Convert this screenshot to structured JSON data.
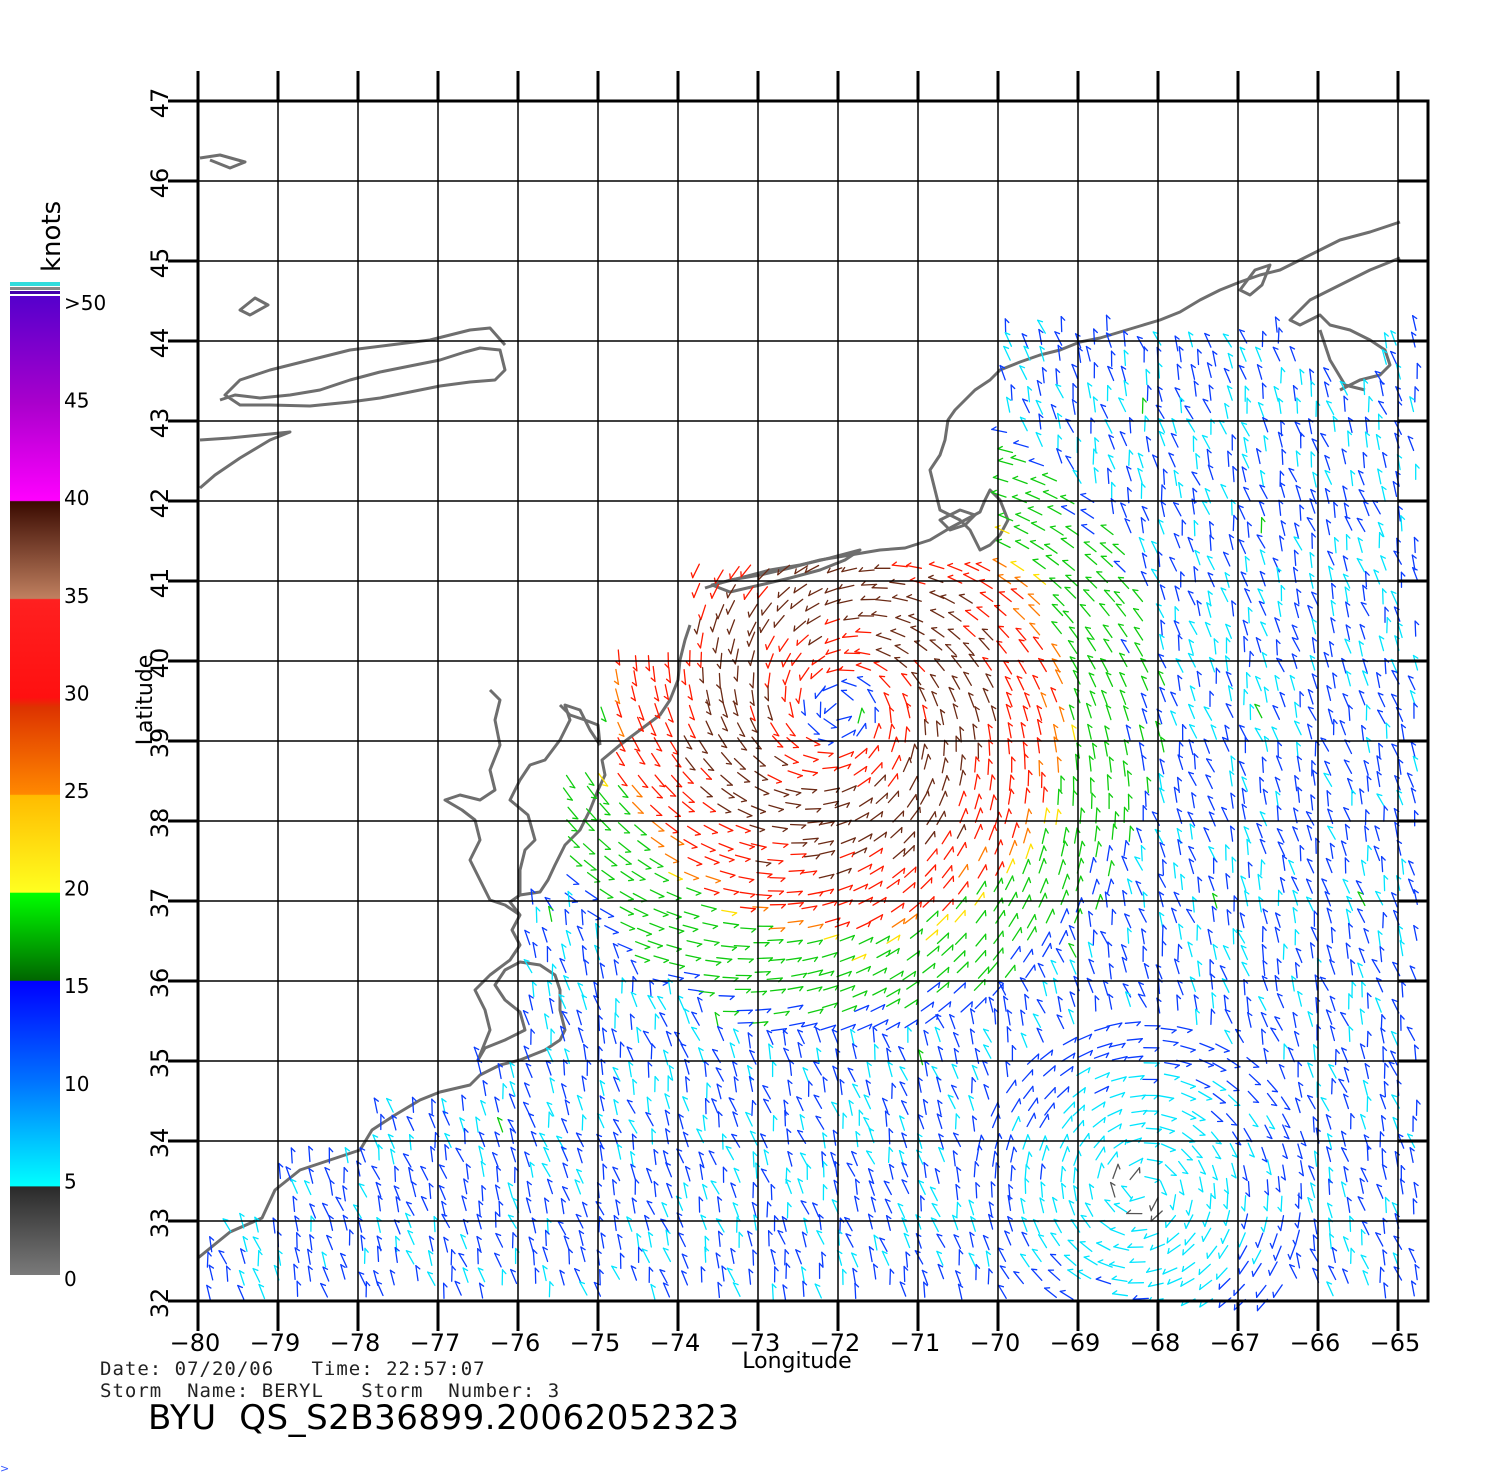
{
  "map": {
    "x_axis_label": "Longitude",
    "y_axis_label": "Latitude",
    "lon_ticks": [
      -80,
      -79,
      -78,
      -77,
      -76,
      -75,
      -74,
      -73,
      -72,
      -71,
      -70,
      -69,
      -68,
      -67,
      -66,
      -65
    ],
    "lat_ticks": [
      32,
      33,
      34,
      35,
      36,
      37,
      38,
      39,
      40,
      41,
      42,
      43,
      44,
      45,
      46,
      47
    ],
    "lon_range": [
      -80,
      -64.6
    ],
    "lat_range": [
      32,
      47
    ],
    "grid": true,
    "storm_center": {
      "lon": -72.0,
      "lat": 39.4
    }
  },
  "colorbar": {
    "unit": "knots",
    "labels": [
      ">50",
      "45",
      "40",
      "35",
      "30",
      "25",
      "20",
      "15",
      "10",
      "5",
      "0"
    ],
    "colors": {
      "0-5": "#555555",
      "5-10": "#00e5ff",
      "10-15": "#0a3cff",
      "15-20": "#0fcc0f",
      "20-25": "#ffe000",
      "25-30": "#ff7a00",
      "30-35": "#ff1a00",
      "35-40": "#6b2a15",
      "40-45": "#ff10ff",
      "45-50": "#8a00cc"
    }
  },
  "footer": {
    "date_line": "Date: 07/20/06   Time: 22:57:07",
    "storm_line": "Storm  Name: BERYL   Storm  Number: 3",
    "file_id": "BYU  QS_S2B36899.20062052323"
  },
  "stray_mark": ">"
}
